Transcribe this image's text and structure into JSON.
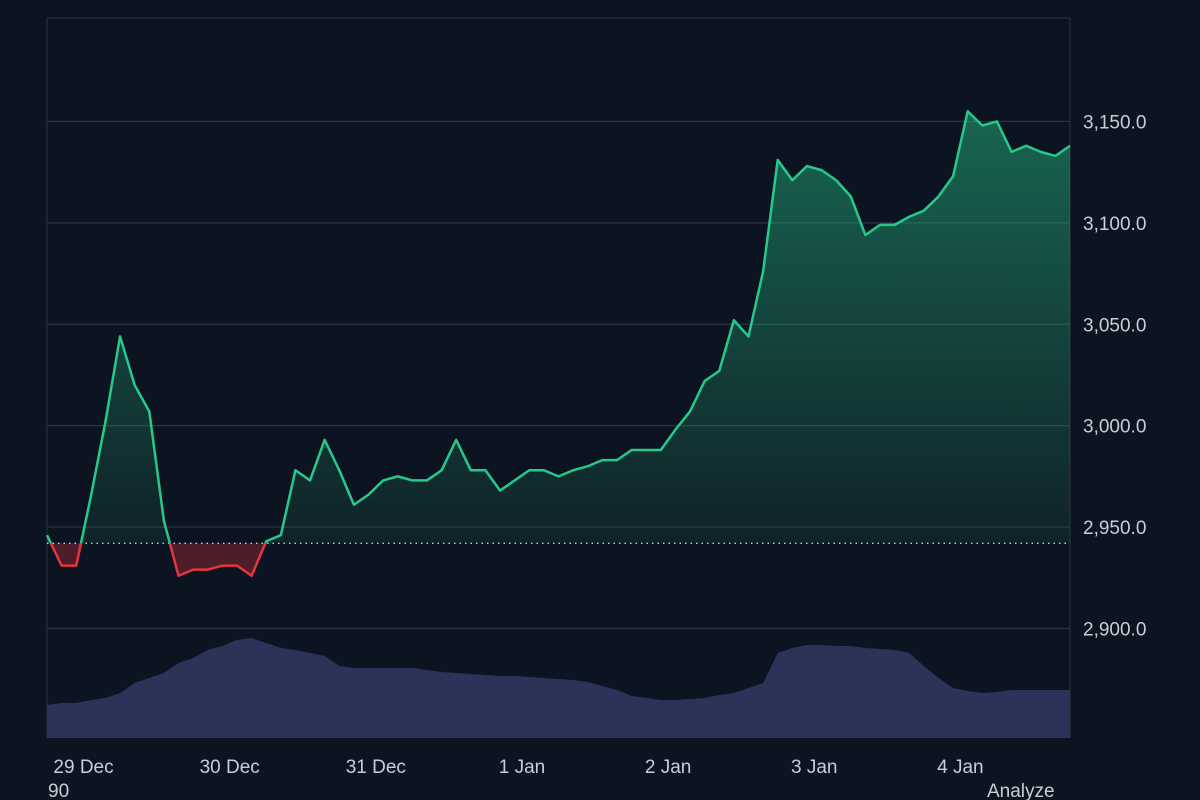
{
  "chart_data": {
    "type": "line",
    "values": [
      2946,
      2931,
      2931,
      2965,
      3002,
      3044,
      3020,
      3007,
      2953,
      2926,
      2929,
      2929,
      2931,
      2931,
      2926,
      2943,
      2946,
      2978,
      2973,
      2993,
      2978,
      2961,
      2966,
      2973,
      2975,
      2973,
      2973,
      2978,
      2993,
      2978,
      2978,
      2968,
      2973,
      2978,
      2978,
      2975,
      2978,
      2980,
      2983,
      2983,
      2988,
      2988,
      2988,
      2998,
      3007,
      3022,
      3027,
      3052,
      3044,
      3076,
      3131,
      3121,
      3128,
      3126,
      3121,
      3113,
      3094,
      3099,
      3099,
      3103,
      3106,
      3113,
      3123,
      3155,
      3148,
      3150,
      3135,
      3138,
      3135,
      3133,
      3138
    ],
    "color": "#26c98a",
    "below_color": "#e5353f",
    "baseline": 2942,
    "volume": {
      "values": [
        33,
        35,
        35,
        38,
        40,
        45,
        55,
        60,
        65,
        75,
        80,
        88,
        92,
        98,
        100,
        95,
        90,
        88,
        85,
        82,
        72,
        70,
        70,
        70,
        70,
        70,
        68,
        66,
        65,
        64,
        63,
        62,
        62,
        61,
        60,
        59,
        58,
        56,
        52,
        48,
        42,
        40,
        38,
        38,
        39,
        40,
        43,
        45,
        50,
        55,
        85,
        90,
        93,
        93,
        92,
        92,
        90,
        89,
        88,
        85,
        72,
        60,
        50,
        47,
        45,
        46,
        48,
        48,
        48,
        48,
        48
      ],
      "color": "#2b3358",
      "axis": "y2"
    },
    "xlim": [
      0,
      70
    ],
    "xticks": [
      {
        "value": 2.5,
        "label": "29 Dec"
      },
      {
        "value": 12.5,
        "label": "30 Dec"
      },
      {
        "value": 22.5,
        "label": "31 Dec"
      },
      {
        "value": 32.5,
        "label": "1 Jan"
      },
      {
        "value": 42.5,
        "label": "2 Jan"
      },
      {
        "value": 52.5,
        "label": "3 Jan"
      },
      {
        "value": 62.5,
        "label": "4 Jan"
      }
    ],
    "ylim": [
      2846,
      3201
    ],
    "yticks": [
      {
        "value": 2900,
        "label": "2,900.0"
      },
      {
        "value": 2950,
        "label": "2,950.0"
      },
      {
        "value": 3000,
        "label": "3,000.0"
      },
      {
        "value": 3050,
        "label": "3,050.0"
      },
      {
        "value": 3100,
        "label": "3,100.0"
      },
      {
        "value": 3150,
        "label": "3,150.0"
      }
    ],
    "y2lim": [
      0,
      720
    ],
    "grid": true
  },
  "footer": {
    "left": "90",
    "right": "Analyze"
  }
}
